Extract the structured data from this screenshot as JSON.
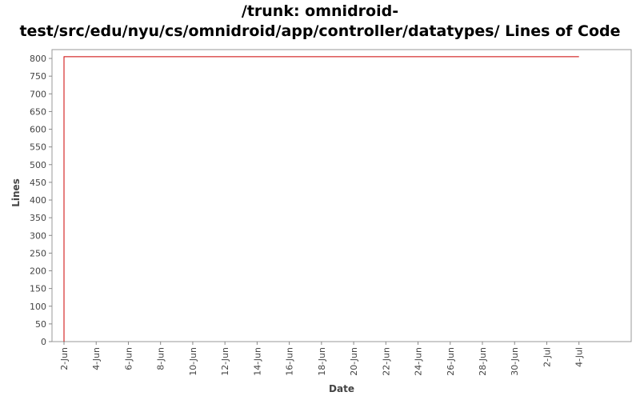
{
  "chart_data": {
    "type": "line",
    "title_lines": [
      "/trunk: omnidroid-",
      "test/src/edu/nyu/cs/omnidroid/app/controller/datatypes/ Lines of Code"
    ],
    "xlabel": "Date",
    "ylabel": "Lines",
    "ylim": [
      0,
      825
    ],
    "yticks": [
      0,
      50,
      100,
      150,
      200,
      250,
      300,
      350,
      400,
      450,
      500,
      550,
      600,
      650,
      700,
      750,
      800
    ],
    "xticks": [
      "2-Jun",
      "4-Jun",
      "6-Jun",
      "8-Jun",
      "10-Jun",
      "12-Jun",
      "14-Jun",
      "16-Jun",
      "18-Jun",
      "20-Jun",
      "22-Jun",
      "24-Jun",
      "26-Jun",
      "28-Jun",
      "30-Jun",
      "2-Jul",
      "4-Jul"
    ],
    "x_start_day": 0,
    "x_end_day": 34.5,
    "series": [
      {
        "name": "",
        "color": "#cc0000",
        "points": [
          {
            "x": "2-Jun",
            "y": 0
          },
          {
            "x": "2-Jun",
            "y": 805
          },
          {
            "x": "4-Jul",
            "y": 805
          }
        ]
      }
    ],
    "grid": false,
    "legend": "none"
  }
}
